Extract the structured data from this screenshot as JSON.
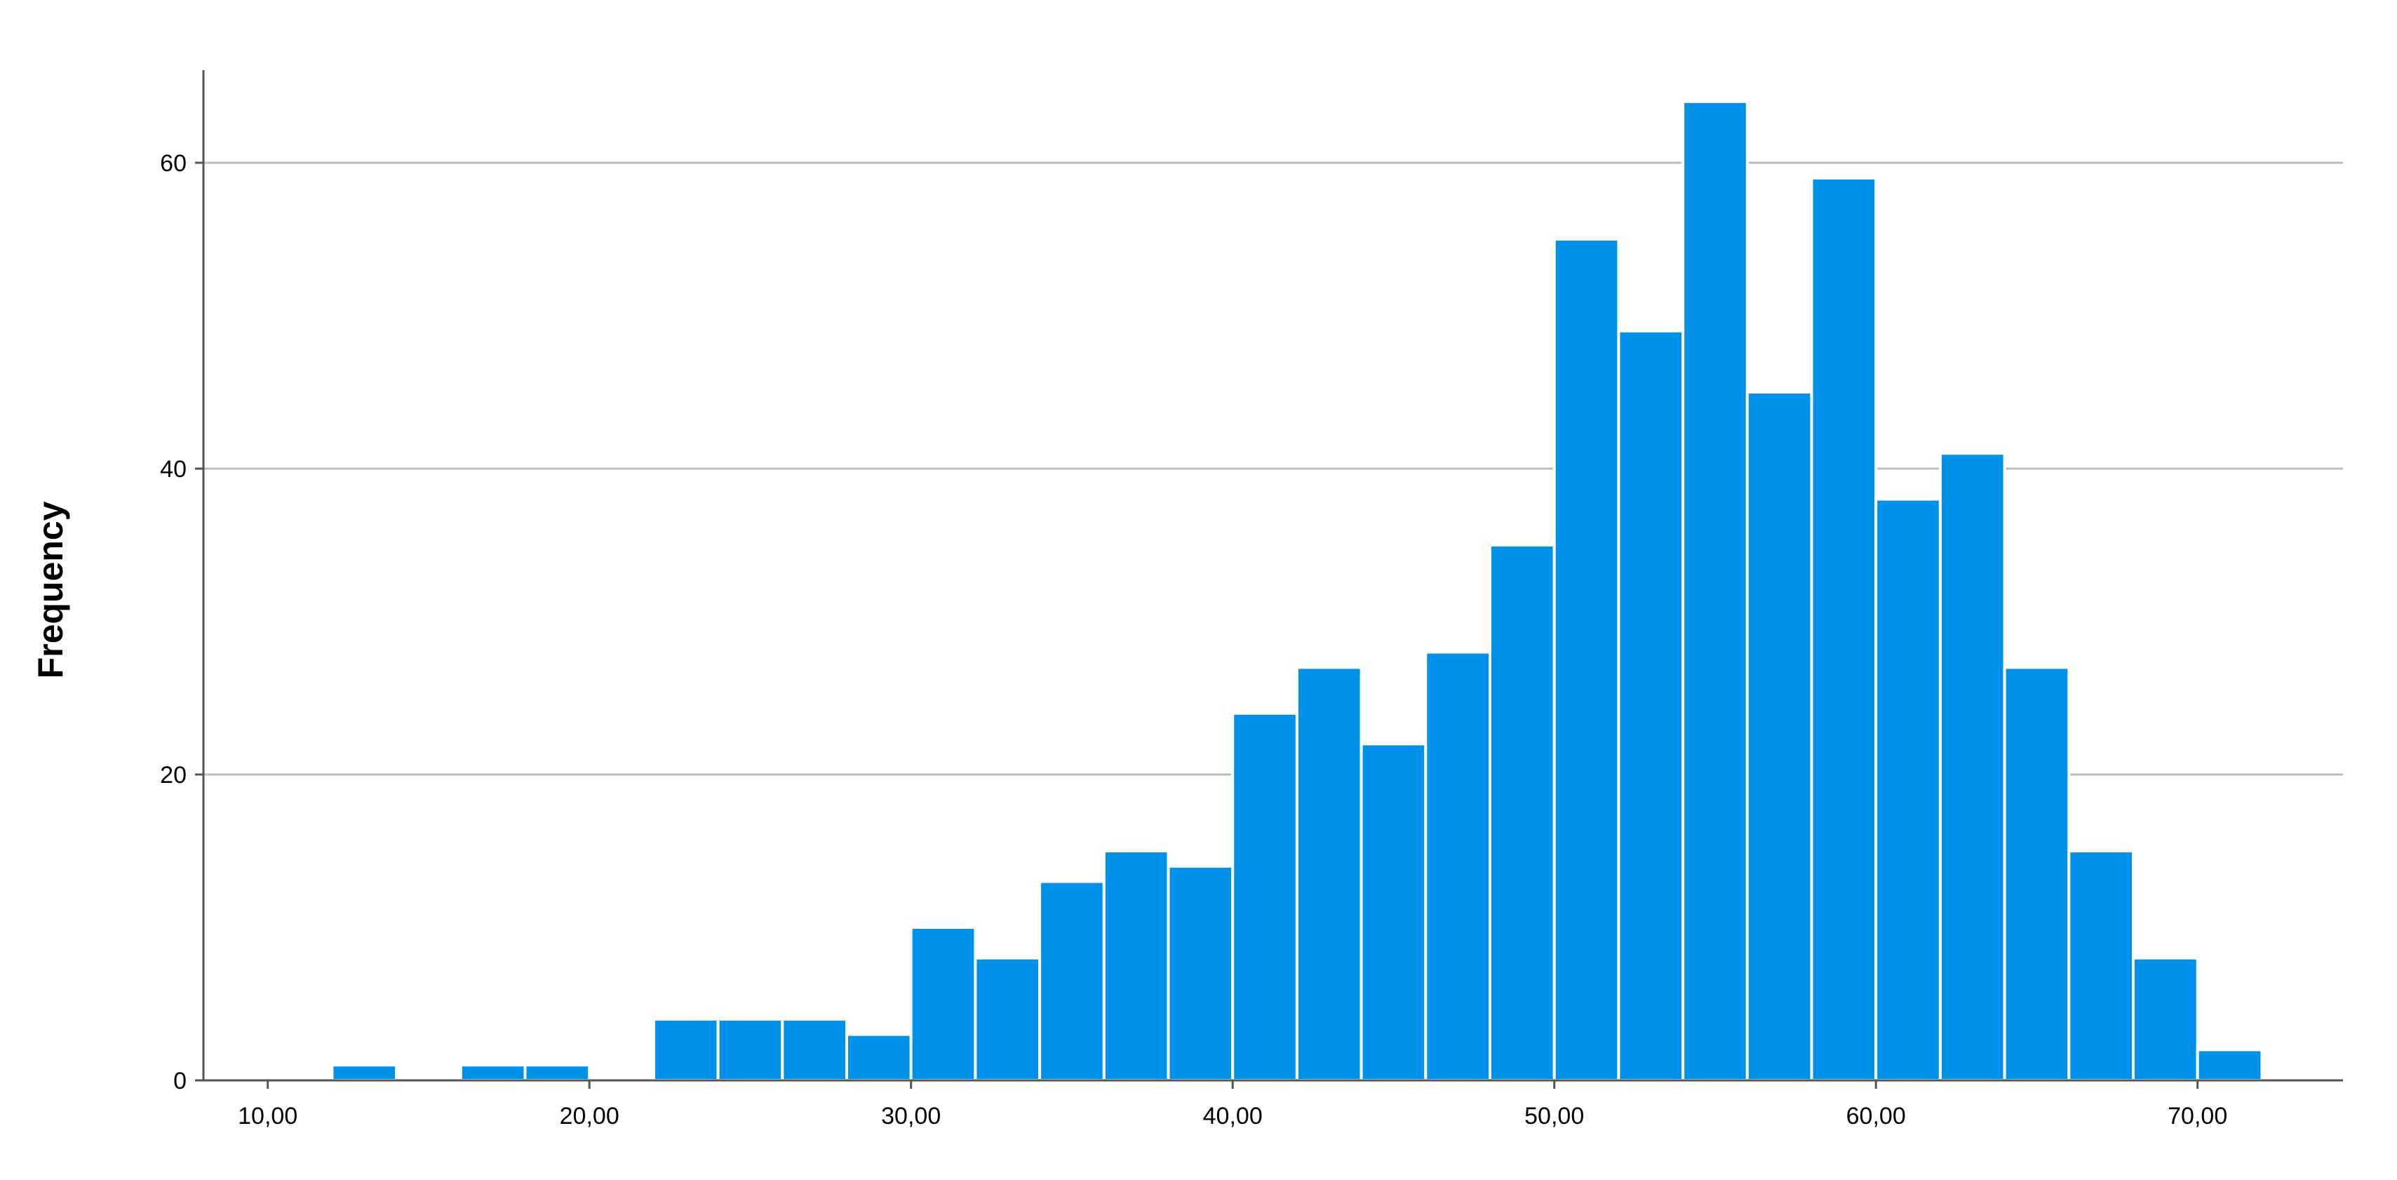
{
  "chart_data": {
    "type": "bar",
    "xlabel": "",
    "ylabel": "Frequency",
    "bin_start": 12,
    "bin_width": 2,
    "bin_edges": [
      12,
      14,
      16,
      18,
      20,
      22,
      24,
      26,
      28,
      30,
      32,
      34,
      36,
      38,
      40,
      42,
      44,
      46,
      48,
      50,
      52,
      54,
      56,
      58,
      60,
      62,
      64,
      66,
      68,
      70,
      72
    ],
    "values": [
      1,
      0,
      1,
      1,
      0,
      4,
      4,
      4,
      3,
      10,
      8,
      13,
      15,
      14,
      24,
      27,
      22,
      28,
      35,
      55,
      49,
      64,
      45,
      59,
      38,
      41,
      27,
      15,
      8,
      2
    ],
    "xlim": [
      8,
      75
    ],
    "ylim": [
      0,
      66
    ],
    "x_ticks": [
      10,
      20,
      30,
      40,
      50,
      60,
      70
    ],
    "x_tick_labels": [
      "10,00",
      "20,00",
      "30,00",
      "40,00",
      "50,00",
      "60,00",
      "70,00"
    ],
    "y_ticks": [
      0,
      20,
      40,
      60
    ],
    "y_tick_labels": [
      "0",
      "20",
      "40",
      "60"
    ],
    "grid": true,
    "bar_color": "#0091EA",
    "bar_edge_color": "#ffffff",
    "grid_color": "#BDBDBD",
    "axis_color": "#555555"
  }
}
